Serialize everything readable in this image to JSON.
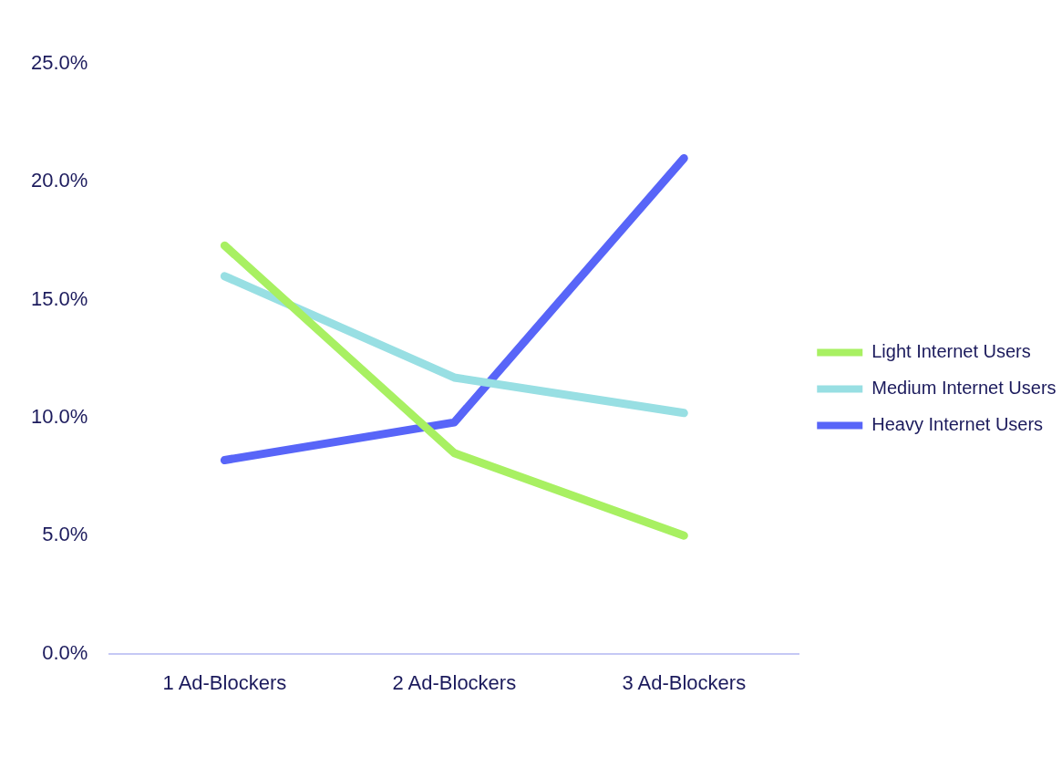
{
  "chart_data": {
    "type": "line",
    "categories": [
      "1 Ad-Blockers",
      "2 Ad-Blockers",
      "3 Ad-Blockers"
    ],
    "series": [
      {
        "name": "Light Internet Users",
        "color": "#a8f062",
        "values": [
          17.3,
          8.5,
          5.0
        ]
      },
      {
        "name": "Medium Internet Users",
        "color": "#98dfe3",
        "values": [
          16.0,
          11.7,
          10.2
        ]
      },
      {
        "name": "Heavy Internet Users",
        "color": "#5865f8",
        "values": [
          8.2,
          9.8,
          21.0
        ]
      }
    ],
    "ylim": [
      0,
      25
    ],
    "yticks": [
      {
        "value": 0,
        "label": "0.0%"
      },
      {
        "value": 5,
        "label": "5.0%"
      },
      {
        "value": 10,
        "label": "10.0%"
      },
      {
        "value": 15,
        "label": "15.0%"
      },
      {
        "value": 20,
        "label": "20.0%"
      },
      {
        "value": 25,
        "label": "25.0%"
      }
    ],
    "grid": false,
    "legend": "right",
    "marker": "none"
  }
}
